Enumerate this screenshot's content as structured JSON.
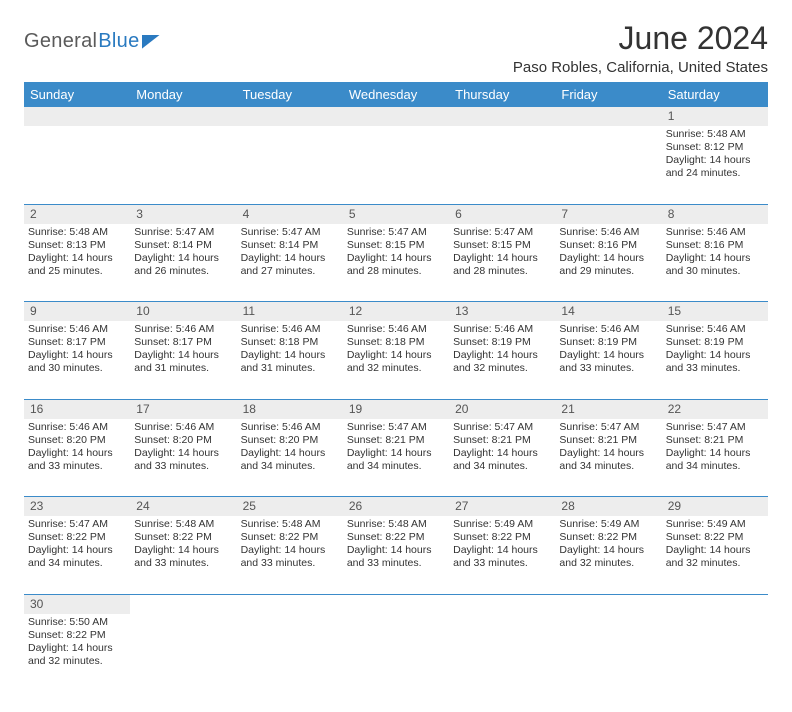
{
  "brand": {
    "part1": "General",
    "part2": "Blue"
  },
  "title": "June 2024",
  "location": "Paso Robles, California, United States",
  "colors": {
    "header_bg": "#3b8bc9",
    "header_fg": "#ffffff",
    "daynum_bg": "#ededed",
    "border": "#3b8bc9",
    "text": "#333333",
    "logo_gray": "#5a5a5a",
    "logo_blue": "#2a7ac0"
  },
  "weekdays": [
    "Sunday",
    "Monday",
    "Tuesday",
    "Wednesday",
    "Thursday",
    "Friday",
    "Saturday"
  ],
  "weeks": [
    [
      null,
      null,
      null,
      null,
      null,
      null,
      {
        "n": "1",
        "sr": "Sunrise: 5:48 AM",
        "ss": "Sunset: 8:12 PM",
        "d1": "Daylight: 14 hours",
        "d2": "and 24 minutes."
      }
    ],
    [
      {
        "n": "2",
        "sr": "Sunrise: 5:48 AM",
        "ss": "Sunset: 8:13 PM",
        "d1": "Daylight: 14 hours",
        "d2": "and 25 minutes."
      },
      {
        "n": "3",
        "sr": "Sunrise: 5:47 AM",
        "ss": "Sunset: 8:14 PM",
        "d1": "Daylight: 14 hours",
        "d2": "and 26 minutes."
      },
      {
        "n": "4",
        "sr": "Sunrise: 5:47 AM",
        "ss": "Sunset: 8:14 PM",
        "d1": "Daylight: 14 hours",
        "d2": "and 27 minutes."
      },
      {
        "n": "5",
        "sr": "Sunrise: 5:47 AM",
        "ss": "Sunset: 8:15 PM",
        "d1": "Daylight: 14 hours",
        "d2": "and 28 minutes."
      },
      {
        "n": "6",
        "sr": "Sunrise: 5:47 AM",
        "ss": "Sunset: 8:15 PM",
        "d1": "Daylight: 14 hours",
        "d2": "and 28 minutes."
      },
      {
        "n": "7",
        "sr": "Sunrise: 5:46 AM",
        "ss": "Sunset: 8:16 PM",
        "d1": "Daylight: 14 hours",
        "d2": "and 29 minutes."
      },
      {
        "n": "8",
        "sr": "Sunrise: 5:46 AM",
        "ss": "Sunset: 8:16 PM",
        "d1": "Daylight: 14 hours",
        "d2": "and 30 minutes."
      }
    ],
    [
      {
        "n": "9",
        "sr": "Sunrise: 5:46 AM",
        "ss": "Sunset: 8:17 PM",
        "d1": "Daylight: 14 hours",
        "d2": "and 30 minutes."
      },
      {
        "n": "10",
        "sr": "Sunrise: 5:46 AM",
        "ss": "Sunset: 8:17 PM",
        "d1": "Daylight: 14 hours",
        "d2": "and 31 minutes."
      },
      {
        "n": "11",
        "sr": "Sunrise: 5:46 AM",
        "ss": "Sunset: 8:18 PM",
        "d1": "Daylight: 14 hours",
        "d2": "and 31 minutes."
      },
      {
        "n": "12",
        "sr": "Sunrise: 5:46 AM",
        "ss": "Sunset: 8:18 PM",
        "d1": "Daylight: 14 hours",
        "d2": "and 32 minutes."
      },
      {
        "n": "13",
        "sr": "Sunrise: 5:46 AM",
        "ss": "Sunset: 8:19 PM",
        "d1": "Daylight: 14 hours",
        "d2": "and 32 minutes."
      },
      {
        "n": "14",
        "sr": "Sunrise: 5:46 AM",
        "ss": "Sunset: 8:19 PM",
        "d1": "Daylight: 14 hours",
        "d2": "and 33 minutes."
      },
      {
        "n": "15",
        "sr": "Sunrise: 5:46 AM",
        "ss": "Sunset: 8:19 PM",
        "d1": "Daylight: 14 hours",
        "d2": "and 33 minutes."
      }
    ],
    [
      {
        "n": "16",
        "sr": "Sunrise: 5:46 AM",
        "ss": "Sunset: 8:20 PM",
        "d1": "Daylight: 14 hours",
        "d2": "and 33 minutes."
      },
      {
        "n": "17",
        "sr": "Sunrise: 5:46 AM",
        "ss": "Sunset: 8:20 PM",
        "d1": "Daylight: 14 hours",
        "d2": "and 33 minutes."
      },
      {
        "n": "18",
        "sr": "Sunrise: 5:46 AM",
        "ss": "Sunset: 8:20 PM",
        "d1": "Daylight: 14 hours",
        "d2": "and 34 minutes."
      },
      {
        "n": "19",
        "sr": "Sunrise: 5:47 AM",
        "ss": "Sunset: 8:21 PM",
        "d1": "Daylight: 14 hours",
        "d2": "and 34 minutes."
      },
      {
        "n": "20",
        "sr": "Sunrise: 5:47 AM",
        "ss": "Sunset: 8:21 PM",
        "d1": "Daylight: 14 hours",
        "d2": "and 34 minutes."
      },
      {
        "n": "21",
        "sr": "Sunrise: 5:47 AM",
        "ss": "Sunset: 8:21 PM",
        "d1": "Daylight: 14 hours",
        "d2": "and 34 minutes."
      },
      {
        "n": "22",
        "sr": "Sunrise: 5:47 AM",
        "ss": "Sunset: 8:21 PM",
        "d1": "Daylight: 14 hours",
        "d2": "and 34 minutes."
      }
    ],
    [
      {
        "n": "23",
        "sr": "Sunrise: 5:47 AM",
        "ss": "Sunset: 8:22 PM",
        "d1": "Daylight: 14 hours",
        "d2": "and 34 minutes."
      },
      {
        "n": "24",
        "sr": "Sunrise: 5:48 AM",
        "ss": "Sunset: 8:22 PM",
        "d1": "Daylight: 14 hours",
        "d2": "and 33 minutes."
      },
      {
        "n": "25",
        "sr": "Sunrise: 5:48 AM",
        "ss": "Sunset: 8:22 PM",
        "d1": "Daylight: 14 hours",
        "d2": "and 33 minutes."
      },
      {
        "n": "26",
        "sr": "Sunrise: 5:48 AM",
        "ss": "Sunset: 8:22 PM",
        "d1": "Daylight: 14 hours",
        "d2": "and 33 minutes."
      },
      {
        "n": "27",
        "sr": "Sunrise: 5:49 AM",
        "ss": "Sunset: 8:22 PM",
        "d1": "Daylight: 14 hours",
        "d2": "and 33 minutes."
      },
      {
        "n": "28",
        "sr": "Sunrise: 5:49 AM",
        "ss": "Sunset: 8:22 PM",
        "d1": "Daylight: 14 hours",
        "d2": "and 32 minutes."
      },
      {
        "n": "29",
        "sr": "Sunrise: 5:49 AM",
        "ss": "Sunset: 8:22 PM",
        "d1": "Daylight: 14 hours",
        "d2": "and 32 minutes."
      }
    ],
    [
      {
        "n": "30",
        "sr": "Sunrise: 5:50 AM",
        "ss": "Sunset: 8:22 PM",
        "d1": "Daylight: 14 hours",
        "d2": "and 32 minutes."
      },
      null,
      null,
      null,
      null,
      null,
      null
    ]
  ]
}
